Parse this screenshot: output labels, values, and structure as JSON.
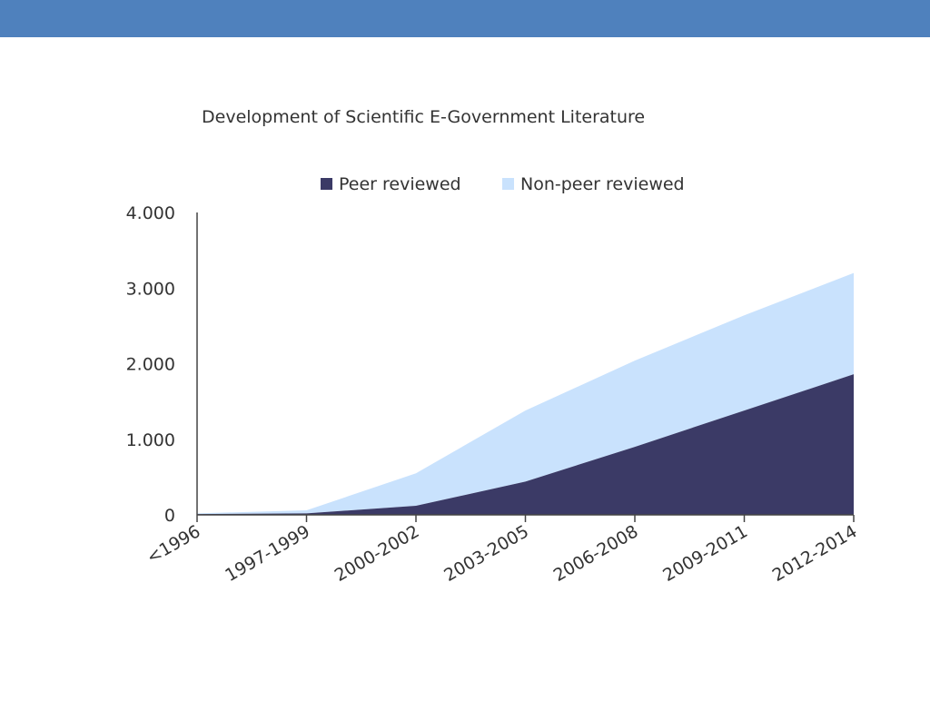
{
  "colors": {
    "top_bar": "#4f81bd",
    "peer": "#3b3a66",
    "non_peer": "#c9e2fd",
    "axis": "#444444",
    "text": "#333333"
  },
  "chart_data": {
    "type": "area",
    "title": "Development of Scientific E-Government Literature",
    "xlabel": "",
    "ylabel": "",
    "stacked": true,
    "categories": [
      "<1996",
      "1997-1999",
      "2000-2002",
      "2003-2005",
      "2006-2008",
      "2009-2011",
      "2012-2014"
    ],
    "ylim": [
      0,
      4000
    ],
    "yticks": [
      0,
      1000,
      2000,
      3000,
      4000
    ],
    "ytick_labels": [
      "0",
      "1.000",
      "2.000",
      "3.000",
      "4.000"
    ],
    "legend_position": "top",
    "series": [
      {
        "name": "Peer reviewed",
        "values": [
          10,
          20,
          120,
          440,
          900,
          1380,
          1860
        ]
      },
      {
        "name": "Non-peer reviewed",
        "values": [
          10,
          40,
          430,
          940,
          1140,
          1260,
          1340
        ]
      }
    ]
  }
}
